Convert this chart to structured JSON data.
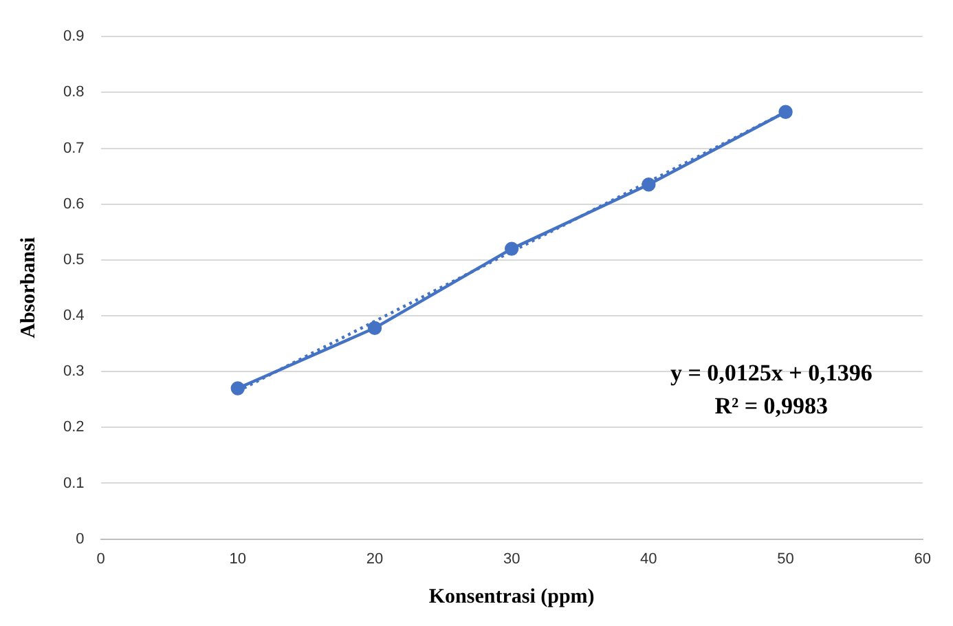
{
  "chart_data": {
    "type": "line",
    "xlabel": "Konsentrasi (ppm)",
    "ylabel": "Absorbansi",
    "x": [
      10,
      20,
      30,
      40,
      50
    ],
    "series": [
      {
        "color": "#4472c4",
        "values": [
          0.27,
          0.378,
          0.52,
          0.635,
          0.765
        ],
        "marker": "circle",
        "line_style": "solid"
      },
      {
        "type": "line",
        "color": "#4472c4",
        "x": [
          10,
          50
        ],
        "values": [
          0.265,
          0.765
        ],
        "marker": "none",
        "line_style": "dotted"
      }
    ],
    "xlim": [
      0,
      60
    ],
    "xticks": [
      0,
      10,
      20,
      30,
      40,
      50,
      60
    ],
    "ylim": [
      0,
      0.9
    ],
    "yticks": [
      0,
      0.1,
      0.2,
      0.3,
      0.4,
      0.5,
      0.6,
      0.7,
      0.8,
      0.9
    ],
    "grid": "y",
    "legend": false,
    "annotations": [
      "y = 0,0125x + 0,1396",
      "R² = 0,9983"
    ]
  }
}
